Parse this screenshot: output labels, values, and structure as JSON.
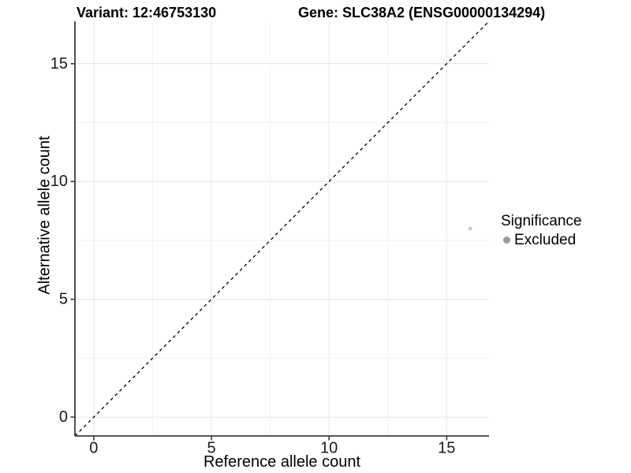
{
  "titles": {
    "variant": "Variant: 12:46753130",
    "gene": "Gene: SLC38A2 (ENSG00000134294)"
  },
  "chart_data": {
    "type": "scatter",
    "xlabel": "Reference allele count",
    "ylabel": "Alternative allele count",
    "xlim": [
      -0.8,
      16.8
    ],
    "ylim": [
      -0.8,
      16.8
    ],
    "xticks": [
      0,
      5,
      10,
      15
    ],
    "yticks": [
      0,
      5,
      10,
      15
    ],
    "grid": "major gridlines at ticks, minor gridlines at 2.5-unit midpoints, light gray on white",
    "points": [
      {
        "x": 16,
        "y": 8,
        "series": "Excluded"
      }
    ],
    "reference_line": {
      "slope": 1,
      "intercept": 0,
      "style": "dashed",
      "color": "#000000"
    },
    "legend": {
      "title": "Significance",
      "position": "right",
      "items": [
        {
          "label": "Excluded",
          "color": "#9a9a9a"
        }
      ]
    },
    "series_colors": {
      "Excluded": "#c5c5c5"
    },
    "style": {
      "grid_major": "#e4e4e4",
      "grid_minor": "#f1f1f1",
      "axis_line": "#3d3d3d",
      "tick_label_color": "#1a1a1a",
      "point_radius": 2.3,
      "background": "#ffffff"
    }
  }
}
